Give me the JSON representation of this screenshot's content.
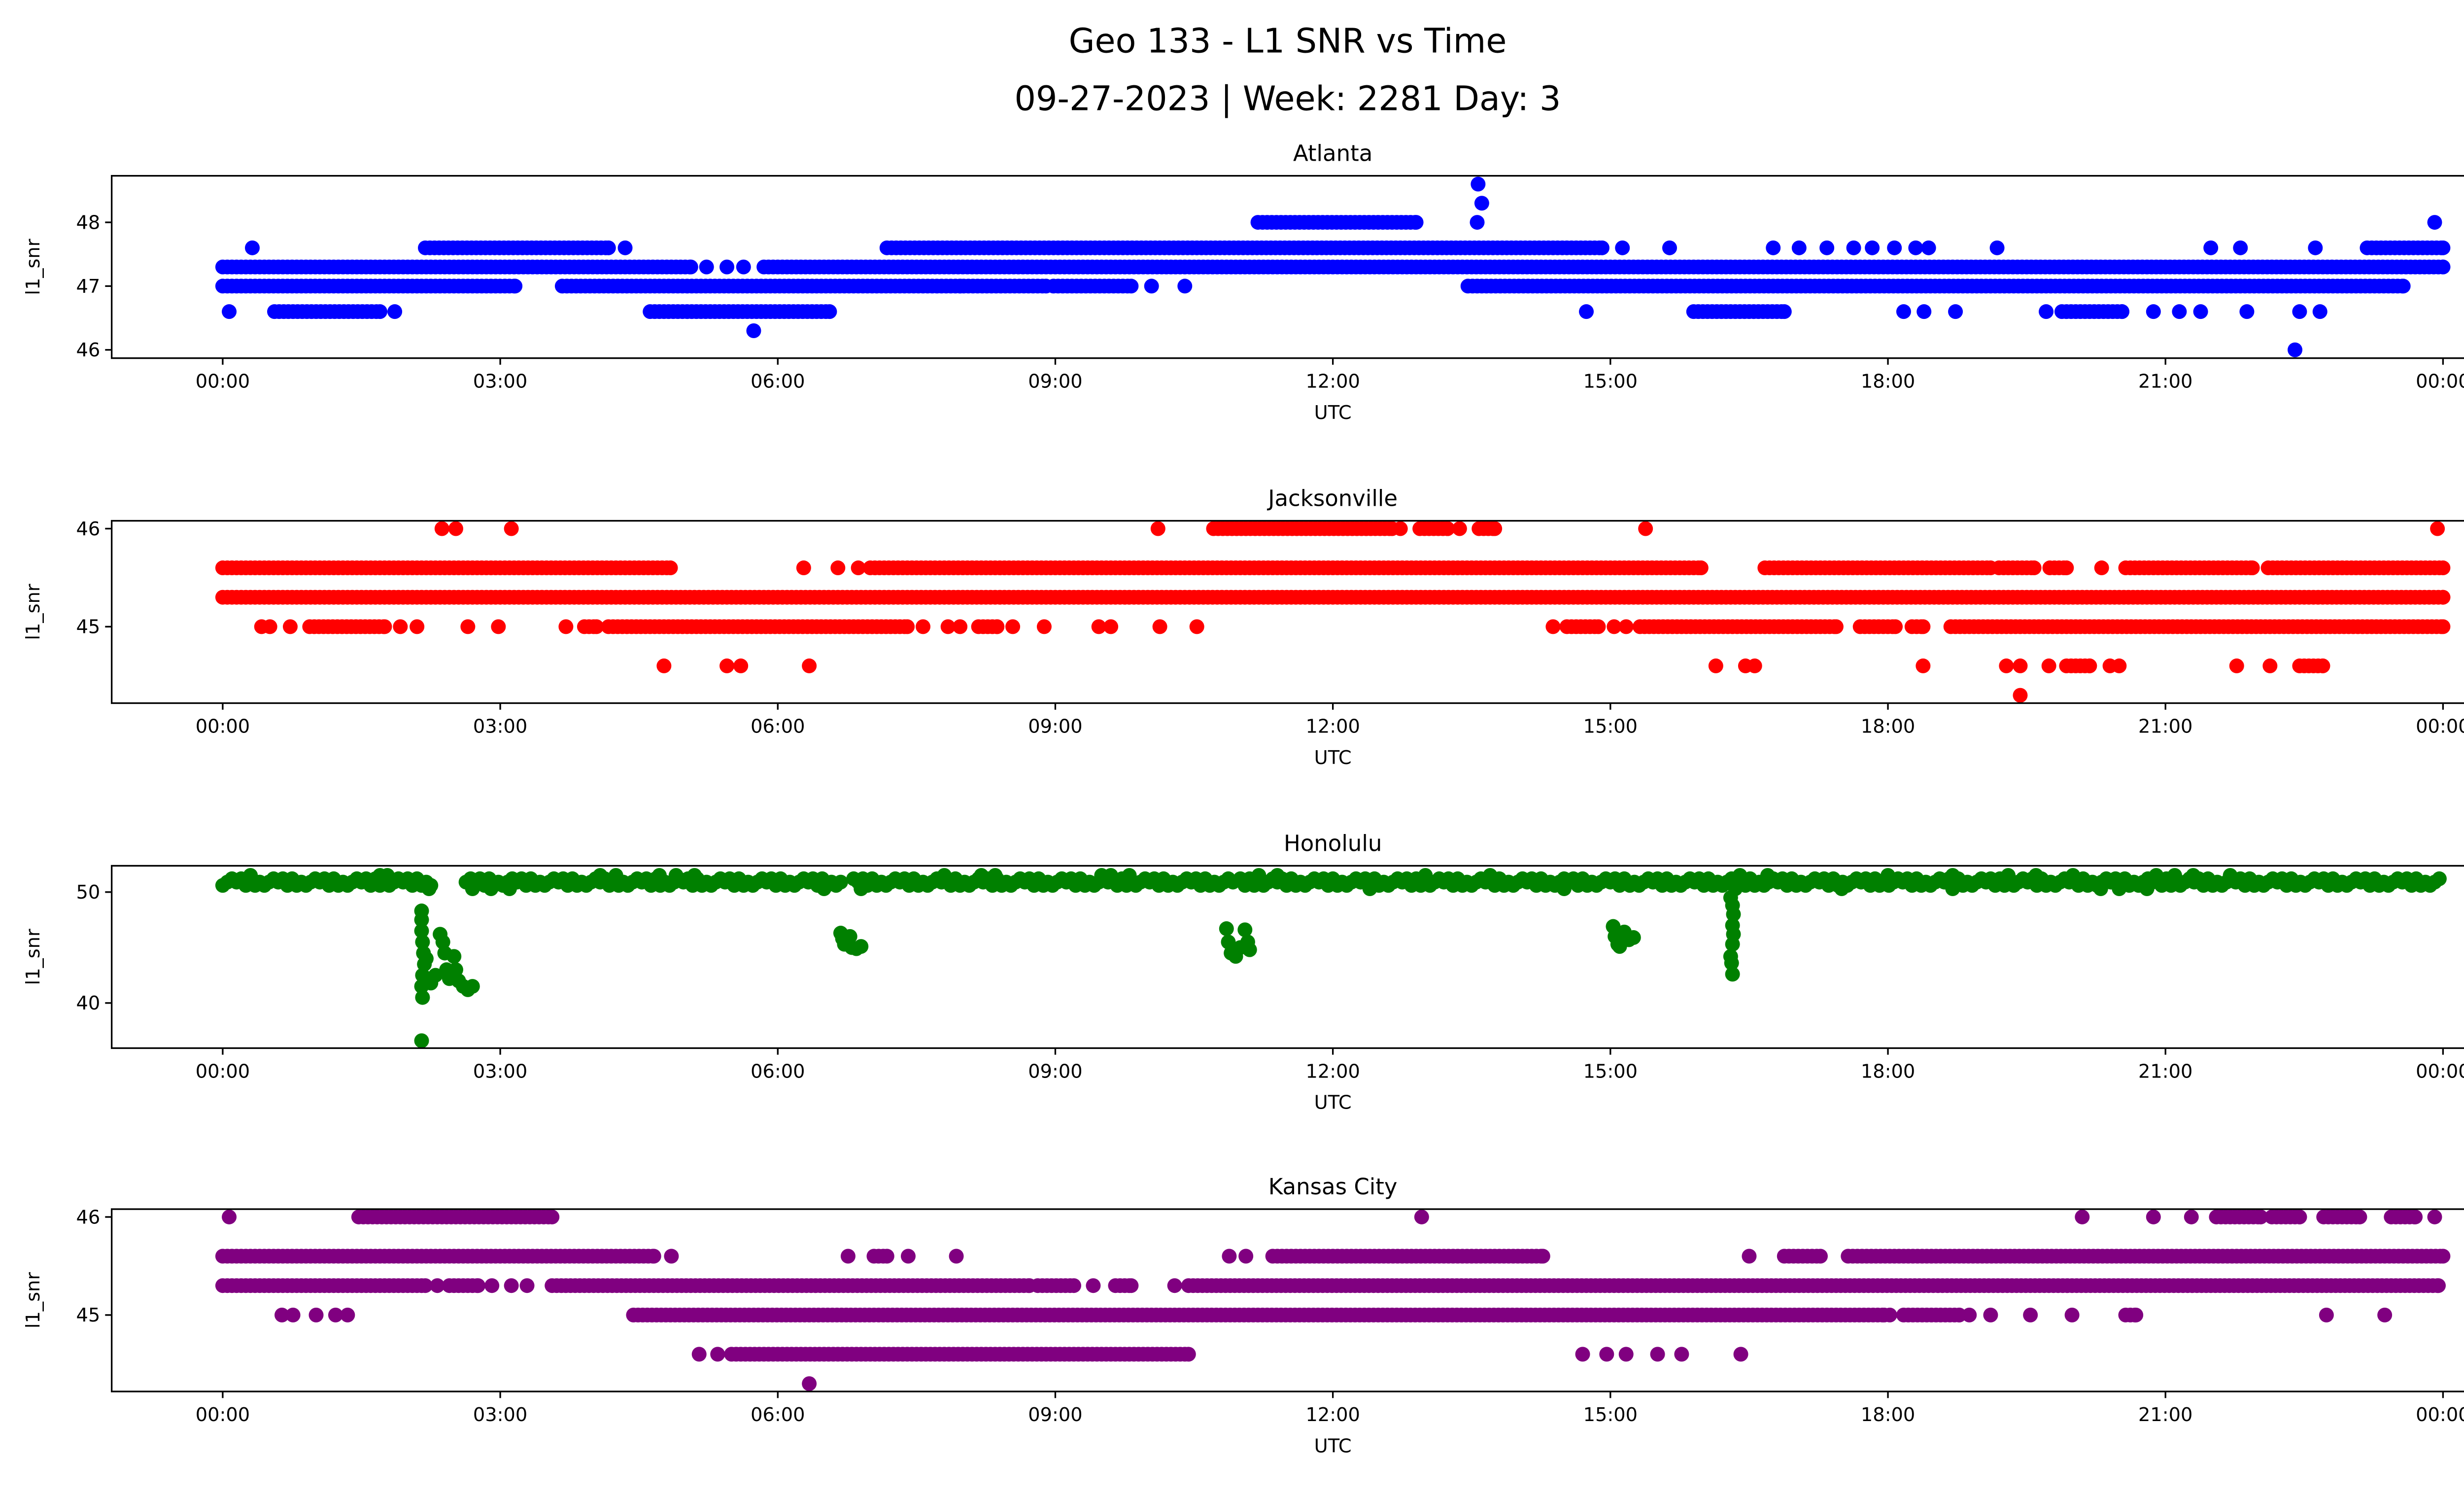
{
  "figure": {
    "title_line1": "Geo 133 - L1 SNR vs Time",
    "title_line2": "09-27-2023 | Week: 2281 Day: 3"
  },
  "chart_data": [
    {
      "type": "scatter",
      "title": "Atlanta",
      "xlabel": "UTC",
      "ylabel": "l1_snr",
      "color": "#0000ff",
      "xlim": [
        -1.2,
        25.2
      ],
      "ylim": [
        45.87,
        48.73
      ],
      "yticks": [
        46,
        47,
        48
      ],
      "ytick_labels": [
        "46",
        "47",
        "48"
      ],
      "xticks": [
        0,
        3,
        6,
        9,
        12,
        15,
        18,
        21,
        24
      ],
      "xtick_labels": [
        "00:00",
        "03:00",
        "06:00",
        "09:00",
        "12:00",
        "15:00",
        "18:00",
        "21:00",
        "00:00"
      ],
      "x_units": "hours UTC",
      "levels": [
        {
          "y": 48.6,
          "runs": [],
          "points": [
            13.57
          ]
        },
        {
          "y": 48.3,
          "runs": [],
          "points": [
            13.61
          ]
        },
        {
          "y": 48.0,
          "runs": [
            [
              11.19,
              12.9
            ]
          ],
          "points": [
            13.56,
            23.91
          ]
        },
        {
          "y": 47.6,
          "runs": [
            [
              2.19,
              4.17
            ],
            [
              7.18,
              14.91
            ],
            [
              23.18,
              24.0
            ]
          ],
          "points": [
            0.32,
            4.35,
            15.13,
            15.64,
            16.76,
            17.04,
            17.34,
            17.63,
            17.83,
            18.07,
            18.3,
            18.44,
            19.18,
            21.49,
            21.81,
            22.62
          ]
        },
        {
          "y": 47.3,
          "runs": [
            [
              0,
              5.06
            ],
            [
              5.85,
              24.0
            ]
          ],
          "points": [
            5.23,
            5.45,
            5.63
          ]
        },
        {
          "y": 47.0,
          "runs": [
            [
              0,
              3.16
            ],
            [
              3.67,
              7.97
            ],
            [
              8.01,
              8.9
            ],
            [
              8.98,
              9.82
            ],
            [
              13.46,
              23.57
            ]
          ],
          "points": [
            10.04,
            10.4
          ]
        },
        {
          "y": 46.6,
          "runs": [
            [
              0.56,
              1.7
            ],
            [
              4.62,
              6.56
            ],
            [
              15.9,
              16.88
            ],
            [
              19.88,
              20.53
            ]
          ],
          "points": [
            0.07,
            1.86,
            14.74,
            18.17,
            18.39,
            18.73,
            19.71,
            20.87,
            21.15,
            21.38,
            21.88,
            22.45,
            22.67
          ]
        },
        {
          "y": 46.3,
          "runs": [],
          "points": [
            5.74
          ]
        },
        {
          "y": 46.0,
          "runs": [],
          "points": [
            22.4
          ]
        }
      ]
    },
    {
      "type": "scatter",
      "title": "Jacksonville",
      "xlabel": "UTC",
      "ylabel": "l1_snr",
      "color": "#ff0000",
      "xlim": [
        -1.2,
        25.2
      ],
      "ylim": [
        44.22,
        46.08
      ],
      "yticks": [
        45,
        46
      ],
      "ytick_labels": [
        "45",
        "46"
      ],
      "xticks": [
        0,
        3,
        6,
        9,
        12,
        15,
        18,
        21,
        24
      ],
      "xtick_labels": [
        "00:00",
        "03:00",
        "06:00",
        "09:00",
        "12:00",
        "15:00",
        "18:00",
        "21:00",
        "00:00"
      ],
      "x_units": "hours UTC",
      "levels": [
        {
          "y": 46.0,
          "runs": [
            [
              10.71,
              12.64
            ],
            [
              12.94,
              13.24
            ],
            [
              13.58,
              13.75
            ]
          ],
          "points": [
            2.37,
            2.52,
            3.12,
            10.11,
            12.73,
            13.37,
            15.38,
            23.94
          ]
        },
        {
          "y": 45.6,
          "runs": [
            [
              0,
              4.84
            ],
            [
              7.0,
              15.98
            ],
            [
              16.67,
              19.11
            ],
            [
              19.2,
              19.58
            ],
            [
              19.75,
              19.93
            ],
            [
              20.57,
              21.94
            ],
            [
              22.11,
              24.0
            ]
          ],
          "points": [
            6.28,
            6.65,
            6.87,
            20.31
          ]
        },
        {
          "y": 45.3,
          "runs": [
            [
              0,
              24.0
            ]
          ],
          "points": []
        },
        {
          "y": 45.0,
          "runs": [
            [
              0.94,
              1.75
            ],
            [
              3.91,
              4.04
            ],
            [
              4.17,
              7.4
            ],
            [
              8.17,
              8.37
            ],
            [
              14.53,
              14.87
            ],
            [
              15.32,
              17.44
            ],
            [
              17.7,
              18.08
            ],
            [
              18.26,
              18.38
            ],
            [
              18.68,
              24.0
            ]
          ],
          "points": [
            0.42,
            0.51,
            0.73,
            1.92,
            2.1,
            2.65,
            2.98,
            3.71,
            7.57,
            7.84,
            7.97,
            8.54,
            8.88,
            9.47,
            9.6,
            10.13,
            10.53,
            14.38,
            15.04,
            15.17
          ]
        },
        {
          "y": 44.6,
          "runs": [
            [
              19.93,
              20.18
            ],
            [
              22.45,
              22.7
            ]
          ],
          "points": [
            4.77,
            5.45,
            5.6,
            6.34,
            16.14,
            16.46,
            16.56,
            18.38,
            19.28,
            19.43,
            19.74,
            20.4,
            20.5,
            21.77,
            22.13
          ]
        },
        {
          "y": 44.3,
          "runs": [],
          "points": [
            19.43
          ]
        }
      ]
    },
    {
      "type": "scatter",
      "title": "Honolulu",
      "xlabel": "UTC",
      "ylabel": "l1_snr",
      "color": "#008000",
      "xlim": [
        -1.2,
        25.2
      ],
      "ylim": [
        35.93,
        52.37
      ],
      "yticks": [
        40,
        50
      ],
      "ytick_labels": [
        "40",
        "50"
      ],
      "xticks": [
        0,
        3,
        6,
        9,
        12,
        15,
        18,
        21,
        24
      ],
      "xtick_labels": [
        "00:00",
        "03:00",
        "06:00",
        "09:00",
        "12:00",
        "15:00",
        "18:00",
        "21:00",
        "00:00"
      ],
      "x_units": "hours UTC",
      "band": {
        "levels": [
          50.6,
          50.9,
          51.2
        ],
        "runs": [
          [
            0,
            2.25
          ],
          [
            2.63,
            6.7
          ],
          [
            6.82,
            10.93
          ],
          [
            11.0,
            15.17
          ],
          [
            15.21,
            24.0
          ]
        ]
      },
      "points": [
        [
          0.3,
          51.5
        ],
        [
          1.7,
          51.5
        ],
        [
          1.78,
          51.5
        ],
        [
          4.08,
          51.5
        ],
        [
          4.25,
          51.5
        ],
        [
          4.72,
          51.5
        ],
        [
          4.9,
          51.5
        ],
        [
          5.1,
          51.5
        ],
        [
          7.8,
          51.5
        ],
        [
          8.2,
          51.5
        ],
        [
          8.35,
          51.5
        ],
        [
          9.5,
          51.5
        ],
        [
          9.6,
          51.5
        ],
        [
          9.8,
          51.5
        ],
        [
          11.2,
          51.5
        ],
        [
          11.4,
          51.5
        ],
        [
          13.0,
          51.5
        ],
        [
          13.7,
          51.5
        ],
        [
          16.4,
          51.5
        ],
        [
          16.7,
          51.5
        ],
        [
          18.0,
          51.5
        ],
        [
          18.7,
          51.5
        ],
        [
          19.3,
          51.5
        ],
        [
          19.6,
          51.5
        ],
        [
          20.0,
          51.5
        ],
        [
          20.9,
          51.5
        ],
        [
          21.1,
          51.5
        ],
        [
          21.3,
          51.5
        ],
        [
          21.7,
          51.5
        ],
        [
          2.23,
          50.3
        ],
        [
          2.7,
          50.3
        ],
        [
          2.9,
          50.3
        ],
        [
          3.1,
          50.3
        ],
        [
          6.5,
          50.3
        ],
        [
          6.9,
          50.3
        ],
        [
          12.4,
          50.3
        ],
        [
          14.5,
          50.3
        ],
        [
          16.35,
          50.3
        ],
        [
          17.5,
          50.3
        ],
        [
          18.7,
          50.3
        ],
        [
          20.3,
          50.3
        ],
        [
          20.5,
          50.3
        ],
        [
          20.8,
          50.3
        ],
        [
          2.15,
          48.3
        ],
        [
          2.15,
          47.5
        ],
        [
          2.15,
          46.5
        ],
        [
          2.16,
          45.5
        ],
        [
          2.17,
          44.5
        ],
        [
          2.18,
          43.5
        ],
        [
          2.16,
          42.5
        ],
        [
          2.15,
          41.5
        ],
        [
          2.16,
          40.5
        ],
        [
          2.15,
          36.6
        ],
        [
          2.2,
          44.0
        ],
        [
          2.22,
          42.0
        ],
        [
          2.25,
          41.8
        ],
        [
          2.3,
          42.5
        ],
        [
          2.35,
          46.2
        ],
        [
          2.38,
          45.5
        ],
        [
          2.4,
          44.5
        ],
        [
          2.42,
          43.0
        ],
        [
          2.45,
          42.2
        ],
        [
          2.5,
          44.2
        ],
        [
          2.52,
          43.0
        ],
        [
          2.55,
          42.0
        ],
        [
          2.6,
          41.5
        ],
        [
          2.65,
          41.2
        ],
        [
          2.7,
          41.5
        ],
        [
          6.68,
          46.3
        ],
        [
          6.7,
          45.8
        ],
        [
          6.72,
          45.3
        ],
        [
          6.75,
          45.6
        ],
        [
          6.78,
          46.0
        ],
        [
          6.8,
          45.0
        ],
        [
          6.85,
          44.9
        ],
        [
          6.9,
          45.1
        ],
        [
          10.85,
          46.7
        ],
        [
          10.87,
          45.5
        ],
        [
          10.9,
          44.5
        ],
        [
          10.95,
          44.2
        ],
        [
          11.0,
          45.0
        ],
        [
          11.05,
          46.6
        ],
        [
          11.08,
          45.5
        ],
        [
          11.1,
          44.8
        ],
        [
          15.03,
          46.9
        ],
        [
          15.05,
          46.0
        ],
        [
          15.08,
          45.3
        ],
        [
          15.1,
          45.1
        ],
        [
          15.12,
          45.6
        ],
        [
          15.15,
          46.4
        ],
        [
          15.2,
          45.7
        ],
        [
          15.25,
          45.9
        ],
        [
          16.3,
          49.5
        ],
        [
          16.32,
          48.8
        ],
        [
          16.33,
          48.0
        ],
        [
          16.32,
          47.0
        ],
        [
          16.33,
          46.2
        ],
        [
          16.32,
          45.3
        ],
        [
          16.3,
          44.2
        ],
        [
          16.31,
          43.6
        ],
        [
          16.32,
          42.6
        ]
      ]
    },
    {
      "type": "scatter",
      "title": "Kansas City",
      "xlabel": "UTC",
      "ylabel": "l1_snr",
      "color": "#800080",
      "xlim": [
        -1.2,
        25.2
      ],
      "ylim": [
        44.22,
        46.08
      ],
      "yticks": [
        45,
        46
      ],
      "ytick_labels": [
        "45",
        "46"
      ],
      "xticks": [
        0,
        3,
        6,
        9,
        12,
        15,
        18,
        21,
        24
      ],
      "xtick_labels": [
        "00:00",
        "03:00",
        "06:00",
        "09:00",
        "12:00",
        "15:00",
        "18:00",
        "21:00",
        "00:00"
      ],
      "x_units": "hours UTC",
      "levels": [
        {
          "y": 46.0,
          "runs": [
            [
              1.47,
              3.56
            ],
            [
              21.55,
              22.03
            ],
            [
              22.15,
              22.45
            ],
            [
              22.71,
              23.1
            ],
            [
              23.44,
              23.7
            ]
          ],
          "points": [
            0.07,
            12.96,
            20.1,
            20.87,
            21.28,
            23.91
          ]
        },
        {
          "y": 45.6,
          "runs": [
            [
              0,
              4.66
            ],
            [
              7.04,
              7.18
            ],
            [
              11.35,
              14.27
            ],
            [
              16.88,
              17.27
            ],
            [
              17.57,
              24.0
            ]
          ],
          "points": [
            4.85,
            6.76,
            7.41,
            7.93,
            10.88,
            11.06,
            16.5
          ]
        },
        {
          "y": 45.3,
          "runs": [
            [
              0,
              2.19
            ],
            [
              2.45,
              2.76
            ],
            [
              3.56,
              8.72
            ],
            [
              8.81,
              9.2
            ],
            [
              9.65,
              9.82
            ],
            [
              10.44,
              23.95
            ]
          ],
          "points": [
            2.32,
            2.91,
            3.12,
            3.29,
            9.41,
            10.29
          ]
        },
        {
          "y": 45.0,
          "runs": [
            [
              4.44,
              17.96
            ],
            [
              18.17,
              18.77
            ],
            [
              20.57,
              20.68
            ]
          ],
          "points": [
            0.64,
            0.76,
            1.01,
            1.22,
            1.35,
            18.02,
            18.88,
            19.11,
            19.54,
            19.99,
            22.74,
            23.37
          ]
        },
        {
          "y": 44.6,
          "runs": [
            [
              5.5,
              10.44
            ]
          ],
          "points": [
            5.15,
            5.35,
            14.7,
            14.96,
            15.17,
            15.51,
            15.77,
            16.41
          ]
        },
        {
          "y": 44.3,
          "runs": [],
          "points": [
            6.34
          ]
        }
      ]
    }
  ]
}
